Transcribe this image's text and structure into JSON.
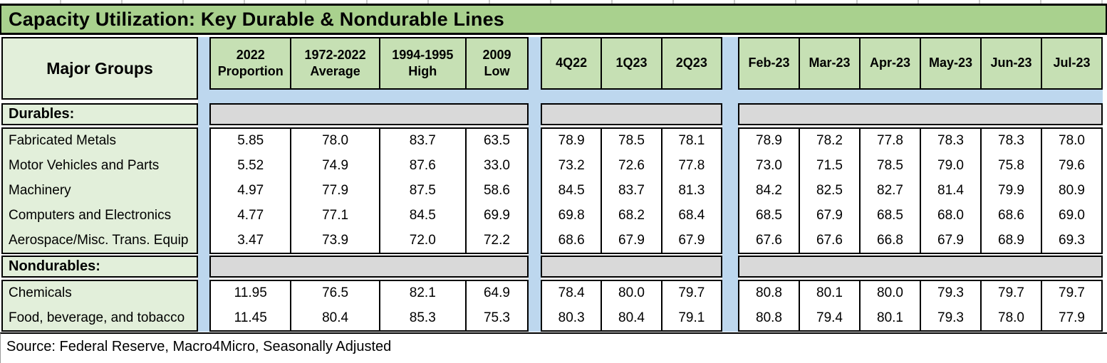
{
  "title": "Capacity Utilization: Key Durable & Nondurable Lines",
  "source_note": "Source: Federal Reserve, Macro4Micro, Seasonally Adjusted",
  "row_header": "Major Groups",
  "colors": {
    "title_bg": "#A9D18E",
    "header_bg": "#C6E0B4",
    "label_bg": "#E2EFDA",
    "separator_blue": "#BDD7EE",
    "section_band_gray": "#D9D9D9",
    "cell_bg": "#FFFFFF",
    "border": "#000000"
  },
  "column_groups": [
    {
      "name": "historical",
      "headers": [
        "2022\nProportion",
        "1972-2022\nAverage",
        "1994-1995\nHigh",
        "2009\nLow"
      ]
    },
    {
      "name": "quarterly",
      "headers": [
        "4Q22",
        "1Q23",
        "2Q23"
      ]
    },
    {
      "name": "monthly",
      "headers": [
        "Feb-23",
        "Mar-23",
        "Apr-23",
        "May-23",
        "Jun-23",
        "Jul-23"
      ]
    }
  ],
  "sections": [
    {
      "label": "Durables:",
      "rows": [
        {
          "label": "Fabricated Metals",
          "values": [
            "5.85",
            "78.0",
            "83.7",
            "63.5",
            "78.9",
            "78.5",
            "78.1",
            "78.9",
            "78.2",
            "77.8",
            "78.3",
            "78.3",
            "78.0"
          ]
        },
        {
          "label": "Motor Vehicles and Parts",
          "values": [
            "5.52",
            "74.9",
            "87.6",
            "33.0",
            "73.2",
            "72.6",
            "77.8",
            "73.0",
            "71.5",
            "78.5",
            "79.0",
            "75.8",
            "79.6"
          ]
        },
        {
          "label": "Machinery",
          "values": [
            "4.97",
            "77.9",
            "87.5",
            "58.6",
            "84.5",
            "83.7",
            "81.3",
            "84.2",
            "82.5",
            "82.7",
            "81.4",
            "79.9",
            "80.9"
          ]
        },
        {
          "label": "Computers and Electronics",
          "values": [
            "4.77",
            "77.1",
            "84.5",
            "69.9",
            "69.8",
            "68.2",
            "68.4",
            "68.5",
            "67.9",
            "68.5",
            "68.0",
            "68.6",
            "69.0"
          ]
        },
        {
          "label": "Aerospace/Misc. Trans. Equip",
          "values": [
            "3.47",
            "73.9",
            "72.0",
            "72.2",
            "68.6",
            "67.9",
            "67.9",
            "67.6",
            "67.6",
            "66.8",
            "67.9",
            "68.9",
            "69.3"
          ]
        }
      ]
    },
    {
      "label": "Nondurables:",
      "rows": [
        {
          "label": "Chemicals",
          "values": [
            "11.95",
            "76.5",
            "82.1",
            "64.9",
            "78.4",
            "80.0",
            "79.7",
            "80.8",
            "80.1",
            "80.0",
            "79.3",
            "79.7",
            "79.7"
          ]
        },
        {
          "label": "Food, beverage, and tobacco",
          "values": [
            "11.45",
            "80.4",
            "85.3",
            "75.3",
            "80.3",
            "80.4",
            "79.1",
            "80.8",
            "79.4",
            "80.1",
            "79.3",
            "78.0",
            "77.9"
          ]
        }
      ]
    }
  ]
}
